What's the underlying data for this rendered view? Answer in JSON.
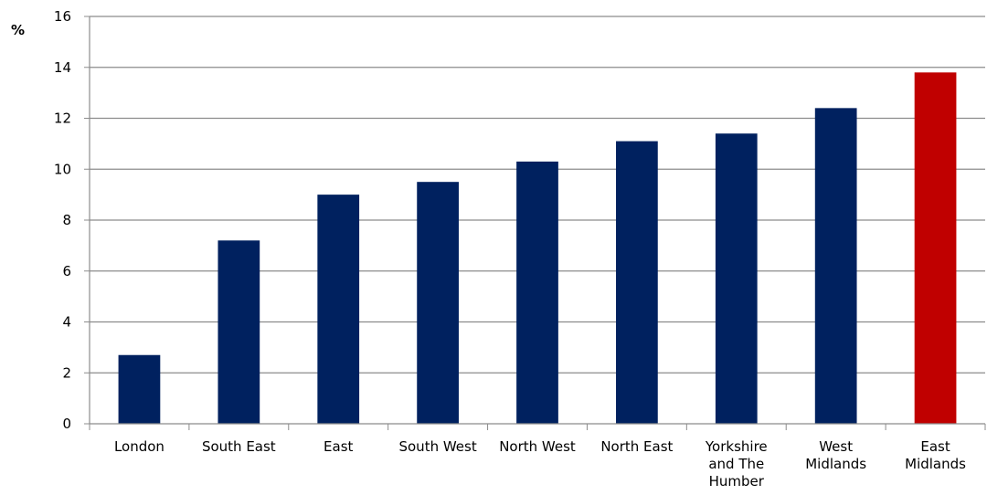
{
  "chart_data": {
    "type": "bar",
    "title": "",
    "xlabel": "",
    "ylabel": "%",
    "ylim": [
      0,
      16
    ],
    "yticks": [
      0,
      2,
      4,
      6,
      8,
      10,
      12,
      14,
      16
    ],
    "grid": true,
    "legend": "none",
    "categories": [
      [
        "London"
      ],
      [
        "South East"
      ],
      [
        "East"
      ],
      [
        "South West"
      ],
      [
        "North West"
      ],
      [
        "North East"
      ],
      [
        "Yorkshire",
        "and The",
        "Humber"
      ],
      [
        "West",
        "Midlands"
      ],
      [
        "East",
        "Midlands"
      ]
    ],
    "values": [
      2.7,
      7.2,
      9.0,
      9.5,
      10.3,
      11.1,
      11.4,
      12.4,
      13.8
    ],
    "colors": {
      "default_bar": "#00215f",
      "highlight_bar": "#c00000",
      "grid": "#8c8c8c",
      "axis": "#8c8c8c"
    },
    "highlight_index": 8
  }
}
